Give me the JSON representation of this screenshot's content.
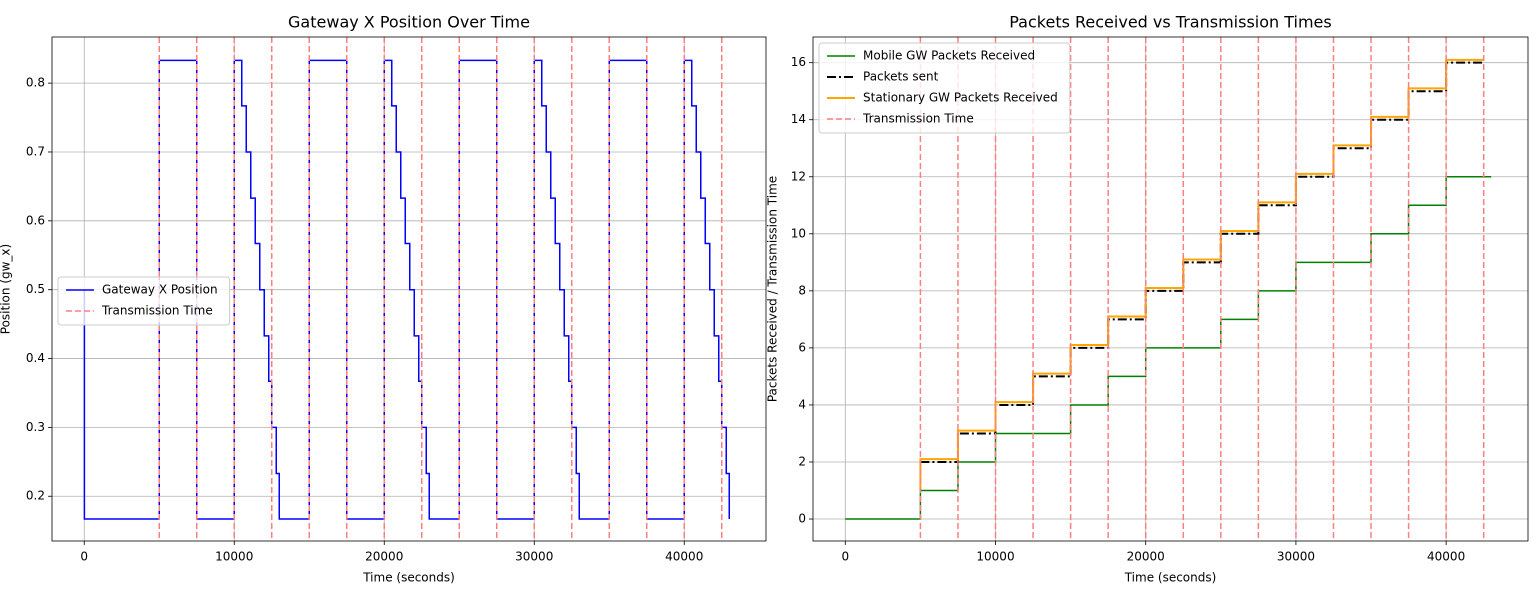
{
  "chart_data": [
    {
      "type": "line",
      "step": "post",
      "title": "Gateway X Position Over Time",
      "x_label": "Time (seconds)",
      "y_label": "Position (gw_x)",
      "xlim": [
        -2150,
        45450
      ],
      "ylim": [
        0.135,
        0.867
      ],
      "xticks": [
        0,
        10000,
        20000,
        30000,
        40000
      ],
      "yticks": [
        0.2,
        0.3,
        0.4,
        0.5,
        0.6,
        0.7,
        0.8
      ],
      "grid": true,
      "legend": "center left",
      "series": [
        {
          "name": "Gateway X Position",
          "color": "#0000ff",
          "linestyle": "solid",
          "linewidth": 1.5,
          "x": [
            0,
            10,
            5000,
            7500,
            10000,
            10500,
            10800,
            11100,
            11400,
            11700,
            12000,
            12300,
            12500,
            12800,
            13000,
            15000,
            17500,
            20000,
            20500,
            20800,
            21100,
            21400,
            21700,
            22000,
            22300,
            22500,
            22800,
            23000,
            25000,
            27500,
            30000,
            30500,
            30800,
            31100,
            31400,
            31700,
            32000,
            32300,
            32500,
            32800,
            33000,
            35000,
            37500,
            40000,
            40500,
            40800,
            41100,
            41400,
            41700,
            42000,
            42300,
            42500,
            42800,
            43000
          ],
          "values": [
            0.5,
            0.167,
            0.833,
            0.167,
            0.833,
            0.767,
            0.7,
            0.633,
            0.567,
            0.5,
            0.433,
            0.367,
            0.3,
            0.233,
            0.167,
            0.833,
            0.167,
            0.833,
            0.767,
            0.7,
            0.633,
            0.567,
            0.5,
            0.433,
            0.367,
            0.3,
            0.233,
            0.167,
            0.833,
            0.167,
            0.833,
            0.767,
            0.7,
            0.633,
            0.567,
            0.5,
            0.433,
            0.367,
            0.3,
            0.233,
            0.167,
            0.833,
            0.167,
            0.833,
            0.767,
            0.7,
            0.633,
            0.567,
            0.5,
            0.433,
            0.367,
            0.3,
            0.233,
            0.167
          ]
        },
        {
          "name": "Transmission Time",
          "style": "vline",
          "color": "#ff7f7f",
          "linestyle": "dashed",
          "linewidth": 1.5,
          "x": [
            5000,
            7500,
            10000,
            12500,
            15000,
            17500,
            20000,
            22500,
            25000,
            27500,
            30000,
            32500,
            35000,
            37500,
            40000,
            42500
          ]
        }
      ]
    },
    {
      "type": "line",
      "step": "post",
      "title": "Packets Received vs Transmission Times",
      "x_label": "Time (seconds)",
      "y_label": "Packets Received / Transmission Time",
      "xlim": [
        -2150,
        45450
      ],
      "ylim": [
        -0.77,
        16.9
      ],
      "xticks": [
        0,
        10000,
        20000,
        30000,
        40000
      ],
      "yticks": [
        0,
        2,
        4,
        6,
        8,
        10,
        12,
        14,
        16
      ],
      "grid": true,
      "legend": "upper left",
      "series": [
        {
          "name": "Mobile GW Packets Received",
          "color": "#008000",
          "linestyle": "solid",
          "linewidth": 1.5,
          "x": [
            0,
            5000,
            7500,
            10000,
            15000,
            17500,
            20000,
            25000,
            27500,
            30000,
            35000,
            37500,
            40000,
            43000
          ],
          "values": [
            0,
            1,
            2,
            3,
            4,
            5,
            6,
            7,
            8,
            9,
            10,
            11,
            12,
            12
          ]
        },
        {
          "name": "Packets sent",
          "color": "#000000",
          "linestyle": "dashdot",
          "linewidth": 2,
          "x": [
            5000,
            7500,
            10000,
            12500,
            15000,
            17500,
            20000,
            22500,
            25000,
            27500,
            30000,
            32500,
            35000,
            37500,
            40000,
            42500
          ],
          "values": [
            2,
            3,
            4,
            5,
            6,
            7,
            8,
            9,
            10,
            11,
            12,
            13,
            14,
            15,
            16,
            16
          ]
        },
        {
          "name": "Stationary GW Packets Received",
          "color": "#ffa500",
          "linestyle": "solid",
          "linewidth": 2,
          "x": [
            5000,
            5000,
            7500,
            10000,
            12500,
            15000,
            17500,
            20000,
            22500,
            25000,
            27500,
            30000,
            32500,
            35000,
            37500,
            40000,
            42500
          ],
          "values": [
            1,
            2.1,
            3.1,
            4.1,
            5.1,
            6.1,
            7.1,
            8.1,
            9.1,
            10.1,
            11.1,
            12.1,
            13.1,
            14.1,
            15.1,
            16.1,
            16.1
          ]
        },
        {
          "name": "Transmission Time",
          "style": "vline",
          "color": "#ff7f7f",
          "linestyle": "dashed",
          "linewidth": 1.5,
          "x": [
            5000,
            7500,
            10000,
            12500,
            15000,
            17500,
            20000,
            22500,
            25000,
            27500,
            30000,
            32500,
            35000,
            37500,
            40000,
            42500
          ]
        }
      ]
    }
  ]
}
